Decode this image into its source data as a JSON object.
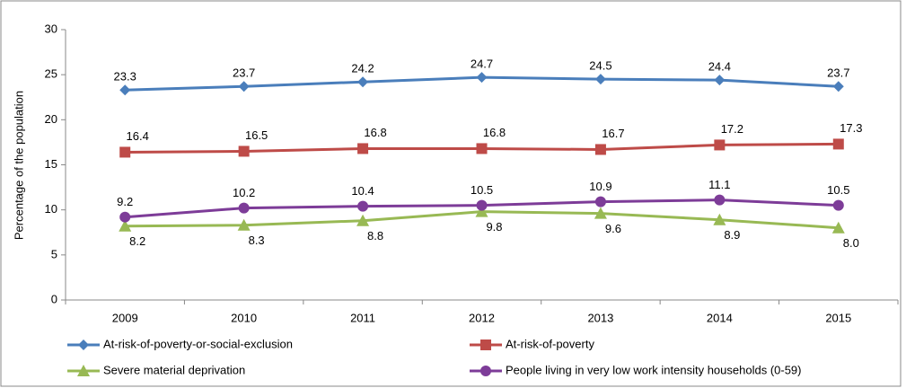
{
  "chart_data": {
    "type": "line",
    "y_label": "Percentage of the population",
    "categories": [
      "2009",
      "2010",
      "2011",
      "2012",
      "2013",
      "2014",
      "2015"
    ],
    "series": [
      {
        "name": "At-risk-of-poverty-or-social-exclusion",
        "color": "#4a7ebb",
        "marker": "diamond",
        "values": [
          23.3,
          23.7,
          24.2,
          24.7,
          24.5,
          24.4,
          23.7
        ]
      },
      {
        "name": "At-risk-of-poverty",
        "color": "#be4b48",
        "marker": "square",
        "values": [
          16.4,
          16.5,
          16.8,
          16.8,
          16.7,
          17.2,
          17.3
        ]
      },
      {
        "name": "Severe material deprivation",
        "color": "#98b954",
        "marker": "triangle",
        "values": [
          8.2,
          8.3,
          8.8,
          9.8,
          9.6,
          8.9,
          8.0
        ],
        "value_labels": [
          "8.2",
          "8.3",
          "8.8",
          "9.8",
          "9.6",
          "8.9",
          "8.0"
        ]
      },
      {
        "name": "People living in very low work intensity households (0-59)",
        "color": "#7d3c98",
        "marker": "circle",
        "values": [
          9.2,
          10.2,
          10.4,
          10.5,
          10.9,
          11.1,
          10.5
        ]
      }
    ],
    "ylim": [
      0,
      30
    ],
    "yticks": [
      0,
      5,
      10,
      15,
      20,
      25,
      30
    ],
    "grid": false
  }
}
